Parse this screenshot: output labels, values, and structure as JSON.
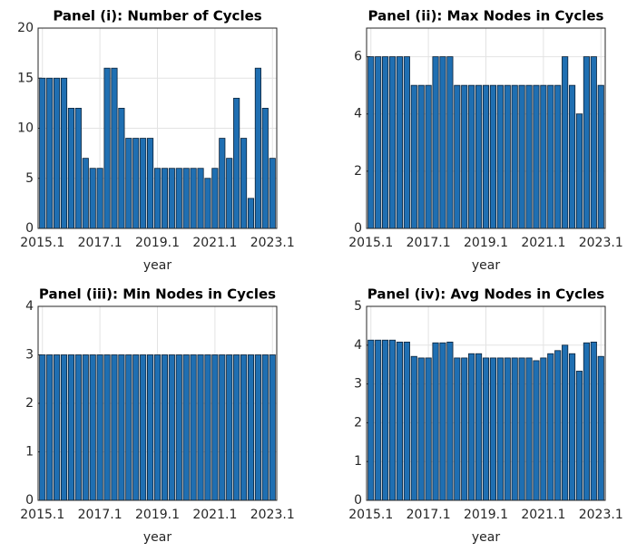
{
  "chart_data": [
    {
      "type": "bar",
      "title": "Panel (i): Number of Cycles",
      "xlabel": "year",
      "categories": [
        "2015.1",
        null,
        null,
        null,
        null,
        null,
        null,
        null,
        "2017.1",
        null,
        null,
        null,
        null,
        null,
        null,
        null,
        "2019.1",
        null,
        null,
        null,
        null,
        null,
        null,
        null,
        "2021.1",
        null,
        null,
        null,
        null,
        null,
        null,
        null,
        "2023.1"
      ],
      "values": [
        15,
        15,
        15,
        15,
        12,
        12,
        7,
        6,
        6,
        16,
        16,
        12,
        9,
        9,
        9,
        9,
        6,
        6,
        6,
        6,
        6,
        6,
        6,
        5,
        6,
        9,
        7,
        13,
        9,
        3,
        16,
        12,
        7
      ],
      "color": "#1f6fb2",
      "ylim": [
        0,
        20
      ],
      "yticks": [
        0,
        5,
        10,
        15,
        20
      ],
      "grid": true
    },
    {
      "type": "bar",
      "title": "Panel (ii): Max Nodes in Cycles",
      "xlabel": "year",
      "categories": [
        "2015.1",
        null,
        null,
        null,
        null,
        null,
        null,
        null,
        "2017.1",
        null,
        null,
        null,
        null,
        null,
        null,
        null,
        "2019.1",
        null,
        null,
        null,
        null,
        null,
        null,
        null,
        "2021.1",
        null,
        null,
        null,
        null,
        null,
        null,
        null,
        "2023.1"
      ],
      "values": [
        6,
        6,
        6,
        6,
        6,
        6,
        5,
        5,
        5,
        6,
        6,
        6,
        5,
        5,
        5,
        5,
        5,
        5,
        5,
        5,
        5,
        5,
        5,
        5,
        5,
        5,
        5,
        6,
        5,
        4,
        6,
        6,
        5
      ],
      "color": "#1f6fb2",
      "ylim": [
        0,
        7
      ],
      "yticks": [
        0,
        2,
        4,
        6
      ],
      "grid": true
    },
    {
      "type": "bar",
      "title": "Panel (iii): Min Nodes in Cycles",
      "xlabel": "year",
      "categories": [
        "2015.1",
        null,
        null,
        null,
        null,
        null,
        null,
        null,
        "2017.1",
        null,
        null,
        null,
        null,
        null,
        null,
        null,
        "2019.1",
        null,
        null,
        null,
        null,
        null,
        null,
        null,
        "2021.1",
        null,
        null,
        null,
        null,
        null,
        null,
        null,
        "2023.1"
      ],
      "values": [
        3,
        3,
        3,
        3,
        3,
        3,
        3,
        3,
        3,
        3,
        3,
        3,
        3,
        3,
        3,
        3,
        3,
        3,
        3,
        3,
        3,
        3,
        3,
        3,
        3,
        3,
        3,
        3,
        3,
        3,
        3,
        3,
        3
      ],
      "color": "#1f6fb2",
      "ylim": [
        0,
        4
      ],
      "yticks": [
        0,
        1,
        2,
        3,
        4
      ],
      "grid": true
    },
    {
      "type": "bar",
      "title": "Panel (iv): Avg Nodes in Cycles",
      "xlabel": "year",
      "categories": [
        "2015.1",
        null,
        null,
        null,
        null,
        null,
        null,
        null,
        "2017.1",
        null,
        null,
        null,
        null,
        null,
        null,
        null,
        "2019.1",
        null,
        null,
        null,
        null,
        null,
        null,
        null,
        "2021.1",
        null,
        null,
        null,
        null,
        null,
        null,
        null,
        "2023.1"
      ],
      "values": [
        4.13,
        4.13,
        4.13,
        4.13,
        4.08,
        4.08,
        3.71,
        3.67,
        3.67,
        4.06,
        4.06,
        4.08,
        3.67,
        3.67,
        3.78,
        3.78,
        3.67,
        3.67,
        3.67,
        3.67,
        3.67,
        3.67,
        3.67,
        3.6,
        3.67,
        3.78,
        3.86,
        4.0,
        3.78,
        3.33,
        4.06,
        4.08,
        3.71
      ],
      "color": "#1f6fb2",
      "ylim": [
        0,
        5
      ],
      "yticks": [
        0,
        1,
        2,
        3,
        4,
        5
      ],
      "grid": true
    }
  ]
}
